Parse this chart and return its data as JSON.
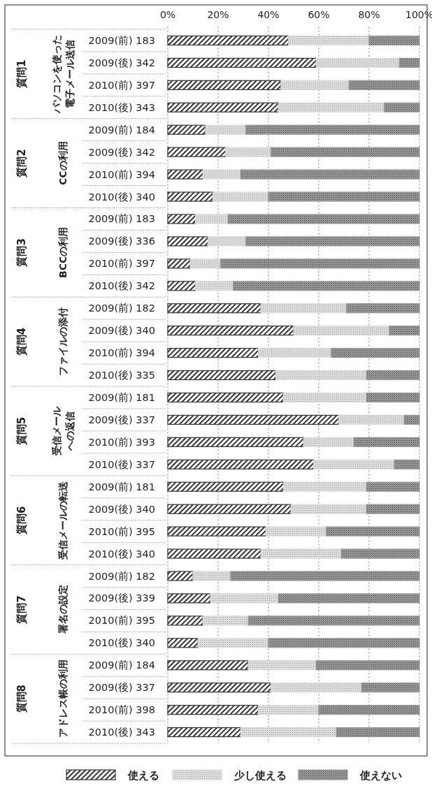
{
  "chart_data": {
    "type": "bar",
    "orientation": "horizontal",
    "stacked": true,
    "categories": [
      "2009(前) 183",
      "2009(後) 342",
      "2010(前) 397",
      "2010(後) 343",
      "2009(前) 184",
      "2009(後) 342",
      "2010(前) 394",
      "2010(後) 340",
      "2009(前) 183",
      "2009(後) 336",
      "2010(前) 397",
      "2010(後) 342",
      "2009(前) 182",
      "2009(後) 340",
      "2010(前) 394",
      "2010(後) 335",
      "2009(前) 181",
      "2009(後) 337",
      "2010(前) 393",
      "2010(後) 337",
      "2009(前) 181",
      "2009(後) 340",
      "2010(前) 395",
      "2010(後) 340",
      "2009(前) 182",
      "2009(後) 339",
      "2010(前) 395",
      "2010(後) 340",
      "2009(前) 184",
      "2009(後) 337",
      "2010(前) 398",
      "2010(後) 343"
    ],
    "series": [
      {
        "name": "使える",
        "color": "#333333",
        "values": [
          48,
          59,
          45,
          44,
          15,
          23,
          14,
          18,
          11,
          16,
          9,
          11,
          37,
          50,
          36,
          43,
          46,
          68,
          54,
          58,
          46,
          49,
          39,
          37,
          10,
          17,
          14,
          12,
          32,
          41,
          36,
          29
        ]
      },
      {
        "name": "少し使える",
        "color": "#dcdcdc",
        "values": [
          32,
          33,
          27,
          42,
          16,
          18,
          15,
          22,
          13,
          15,
          12,
          15,
          34,
          38,
          29,
          36,
          33,
          26,
          20,
          32,
          33,
          30,
          24,
          32,
          15,
          27,
          18,
          28,
          27,
          36,
          24,
          38
        ]
      },
      {
        "name": "使えない",
        "color": "#9a9a9a",
        "values": [
          20,
          8,
          28,
          14,
          69,
          59,
          71,
          60,
          76,
          69,
          79,
          74,
          29,
          12,
          35,
          21,
          21,
          6,
          26,
          10,
          21,
          21,
          37,
          31,
          75,
          56,
          68,
          60,
          41,
          23,
          40,
          33
        ]
      }
    ],
    "annotations": [
      "質問1",
      "パソコンを使った電子メール送信",
      "質問2",
      "CCの利用",
      "質問3",
      "BCCの利用",
      "質問4",
      "ファイルの添付",
      "質問5",
      "受信メールへの返信",
      "質問6",
      "受信メールの転送",
      "質問7",
      "署名の設定",
      "質問8",
      "アドレス帳の利用"
    ],
    "xlim": [
      0,
      100
    ],
    "xticks": [
      {
        "value": 0,
        "label": "0%"
      },
      {
        "value": 20,
        "label": "20%"
      },
      {
        "value": 40,
        "label": "40%"
      },
      {
        "value": 60,
        "label": "60%"
      },
      {
        "value": 80,
        "label": "80%"
      },
      {
        "value": 100,
        "label": "100%"
      }
    ],
    "grid": "x",
    "legend": "bottom"
  }
}
